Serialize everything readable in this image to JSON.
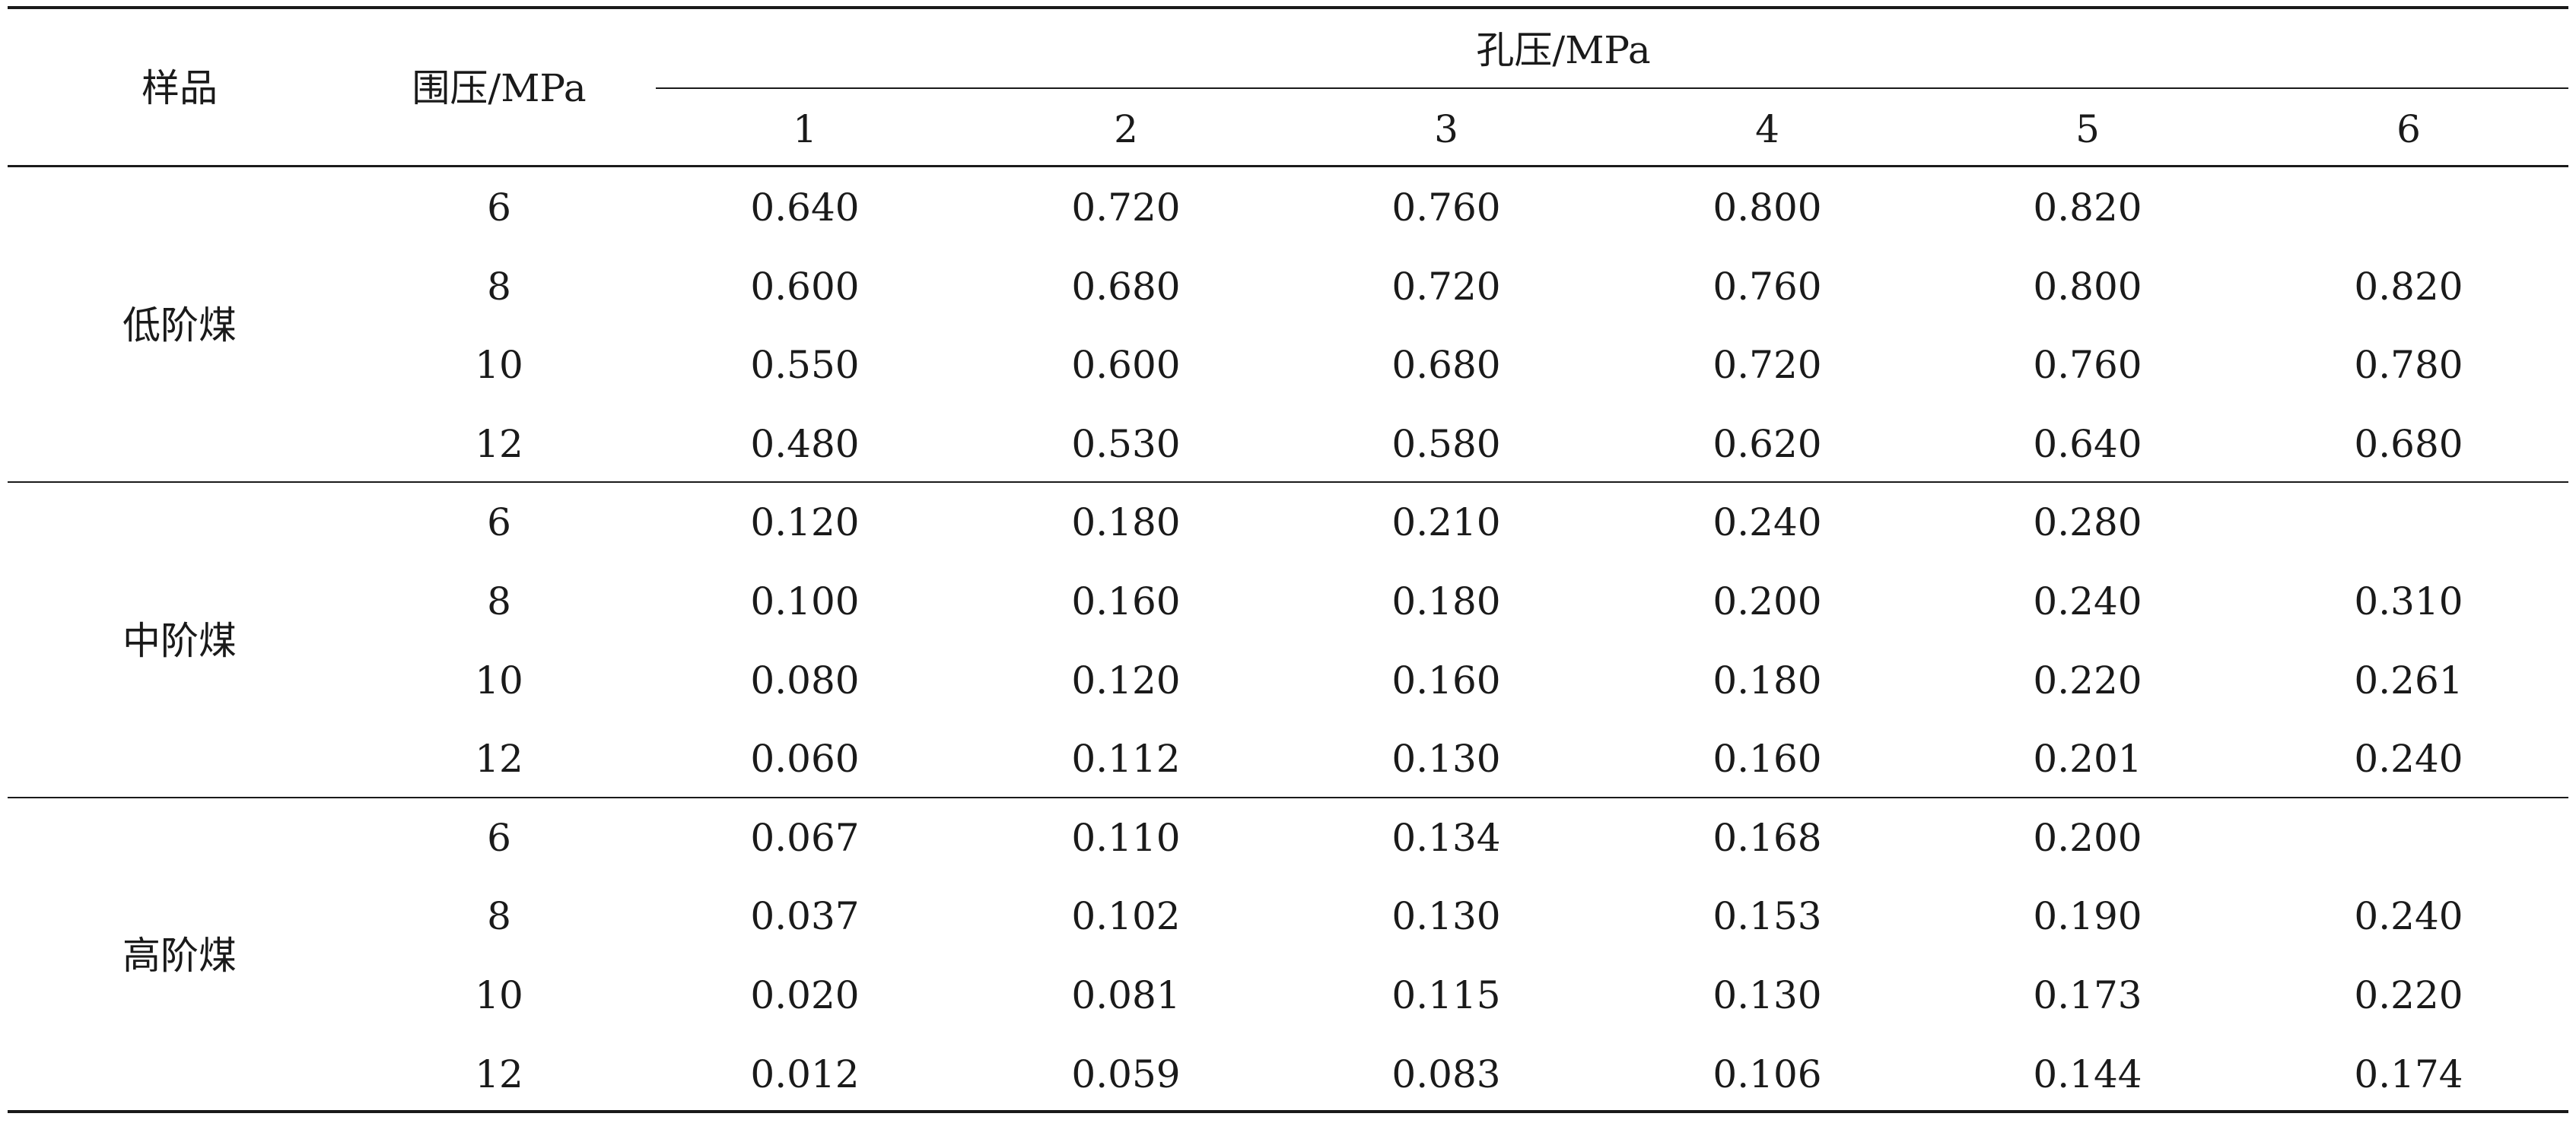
{
  "table": {
    "header": {
      "sample": "样品",
      "confining_pressure": "围压/MPa",
      "pore_pressure": "孔压/MPa",
      "pore_pressure_levels": [
        "1",
        "2",
        "3",
        "4",
        "5",
        "6"
      ]
    },
    "groups": [
      {
        "sample": "低阶煤",
        "rows": [
          {
            "confining": "6",
            "values": [
              "0.640",
              "0.720",
              "0.760",
              "0.800",
              "0.820",
              ""
            ]
          },
          {
            "confining": "8",
            "values": [
              "0.600",
              "0.680",
              "0.720",
              "0.760",
              "0.800",
              "0.820"
            ]
          },
          {
            "confining": "10",
            "values": [
              "0.550",
              "0.600",
              "0.680",
              "0.720",
              "0.760",
              "0.780"
            ]
          },
          {
            "confining": "12",
            "values": [
              "0.480",
              "0.530",
              "0.580",
              "0.620",
              "0.640",
              "0.680"
            ]
          }
        ]
      },
      {
        "sample": "中阶煤",
        "rows": [
          {
            "confining": "6",
            "values": [
              "0.120",
              "0.180",
              "0.210",
              "0.240",
              "0.280",
              ""
            ]
          },
          {
            "confining": "8",
            "values": [
              "0.100",
              "0.160",
              "0.180",
              "0.200",
              "0.240",
              "0.310"
            ]
          },
          {
            "confining": "10",
            "values": [
              "0.080",
              "0.120",
              "0.160",
              "0.180",
              "0.220",
              "0.261"
            ]
          },
          {
            "confining": "12",
            "values": [
              "0.060",
              "0.112",
              "0.130",
              "0.160",
              "0.201",
              "0.240"
            ]
          }
        ]
      },
      {
        "sample": "高阶煤",
        "rows": [
          {
            "confining": "6",
            "values": [
              "0.067",
              "0.110",
              "0.134",
              "0.168",
              "0.200",
              ""
            ]
          },
          {
            "confining": "8",
            "values": [
              "0.037",
              "0.102",
              "0.130",
              "0.153",
              "0.190",
              "0.240"
            ]
          },
          {
            "confining": "10",
            "values": [
              "0.020",
              "0.081",
              "0.115",
              "0.130",
              "0.173",
              "0.220"
            ]
          },
          {
            "confining": "12",
            "values": [
              "0.012",
              "0.059",
              "0.083",
              "0.106",
              "0.144",
              "0.174"
            ]
          }
        ]
      }
    ]
  }
}
